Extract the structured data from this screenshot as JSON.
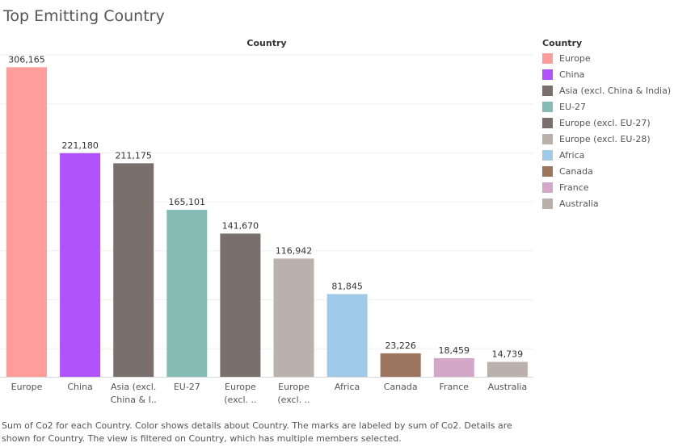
{
  "title": "Top Emitting Country",
  "caption": "Sum of Co2 for each Country.  Color shows details about Country.  The marks are labeled by sum of Co2.  Details are shown for Country. The view is filtered on Country, which has multiple members selected.",
  "legend": {
    "title": "Country",
    "items": [
      {
        "label": "Europe",
        "color": "#ff9d9a"
      },
      {
        "label": "China",
        "color": "#b053fc"
      },
      {
        "label": "Asia (excl. China & India)",
        "color": "#79706e"
      },
      {
        "label": "EU-27",
        "color": "#86bcb6"
      },
      {
        "label": "Europe (excl. EU-27)",
        "color": "#79706e"
      },
      {
        "label": "Europe (excl. EU-28)",
        "color": "#bab0ac"
      },
      {
        "label": "Africa",
        "color": "#a0cbe8"
      },
      {
        "label": "Canada",
        "color": "#9d7660"
      },
      {
        "label": "France",
        "color": "#d4a6c8"
      },
      {
        "label": "Australia",
        "color": "#bab0ac"
      }
    ]
  },
  "chart_data": {
    "type": "bar",
    "title": "Top Emitting Country",
    "column_header": "Country",
    "categories": [
      "Europe",
      "China",
      "Asia (excl. China & India)",
      "EU-27",
      "Europe (excl. EU-27)",
      "Europe (excl. EU-28)",
      "Africa",
      "Canada",
      "France",
      "Australia"
    ],
    "tick_labels": [
      [
        "Europe"
      ],
      [
        "China"
      ],
      [
        "Asia (excl.",
        "China & I.."
      ],
      [
        "EU-27"
      ],
      [
        "Europe",
        "(excl. .."
      ],
      [
        "Europe",
        "(excl. .."
      ],
      [
        "Africa"
      ],
      [
        "Canada"
      ],
      [
        "France"
      ],
      [
        "Australia"
      ]
    ],
    "values": [
      306165,
      221180,
      211175,
      165101,
      141670,
      116942,
      81845,
      23226,
      18459,
      14739
    ],
    "value_labels": [
      "306,165",
      "221,180",
      "211,175",
      "165,101",
      "141,670",
      "116,942",
      "81,845",
      "23,226",
      "18,459",
      "14,739"
    ],
    "colors": [
      "#ff9d9a",
      "#b053fc",
      "#79706e",
      "#86bcb6",
      "#79706e",
      "#bab0ac",
      "#a0cbe8",
      "#9d7660",
      "#d4a6c8",
      "#bab0ac"
    ],
    "ylim": [
      0,
      320000
    ],
    "grid": true,
    "legend_position": "right",
    "xlabel": "",
    "ylabel": ""
  }
}
